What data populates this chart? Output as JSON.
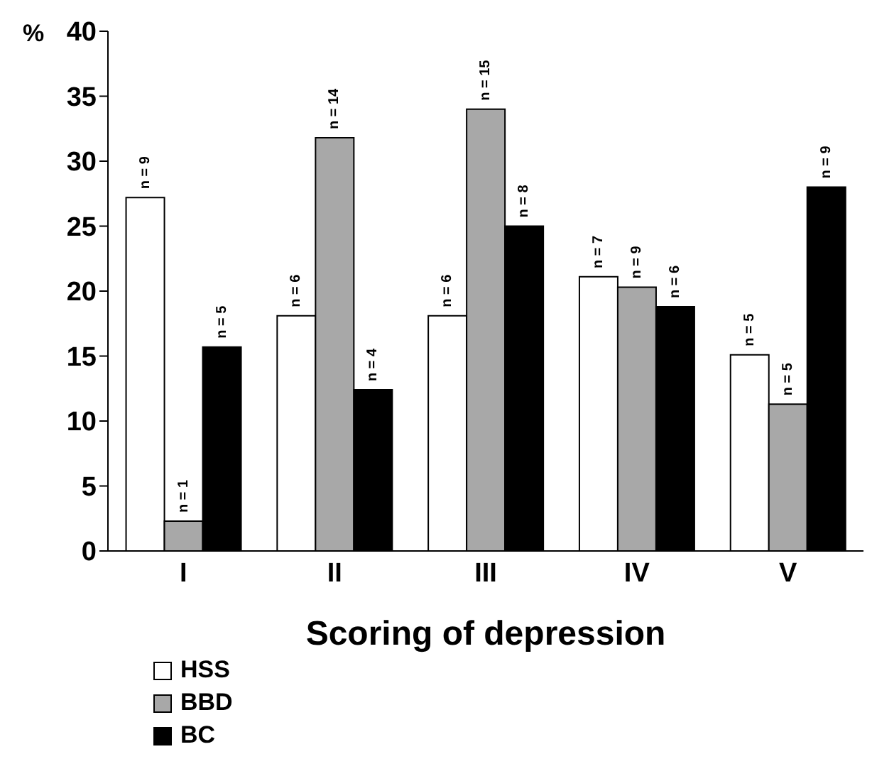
{
  "chart_data": {
    "type": "bar",
    "ylabel": "%",
    "xlabel": "Scoring of depression",
    "categories": [
      "I",
      "II",
      "III",
      "IV",
      "V"
    ],
    "series": [
      {
        "name": "HSS",
        "color": "#ffffff",
        "values": [
          27.2,
          18.1,
          18.1,
          21.1,
          15.1
        ]
      },
      {
        "name": "BBD",
        "color": "#a8a8a8",
        "values": [
          2.3,
          31.8,
          34.0,
          20.3,
          11.3
        ]
      },
      {
        "name": "BC",
        "color": "#000000",
        "values": [
          15.7,
          12.4,
          25.0,
          18.8,
          28.0
        ]
      }
    ],
    "annotations": [
      "n = 9",
      "n = 1",
      "n = 5",
      "n = 6",
      "n = 14",
      "n = 4",
      "n = 6",
      "n = 15",
      "n = 8",
      "n = 7",
      "n = 9",
      "n = 6",
      "n = 5",
      "n = 5",
      "n = 9"
    ],
    "ylim": [
      0,
      40
    ],
    "yticks": [
      0,
      5,
      10,
      15,
      20,
      25,
      30,
      35,
      40
    ],
    "grid": false,
    "legend": "bottom left"
  }
}
